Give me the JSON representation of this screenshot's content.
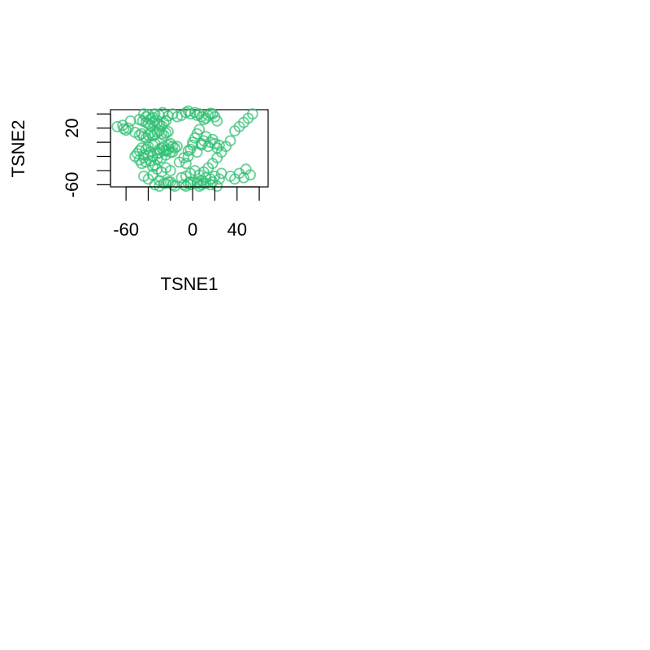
{
  "chart_data": {
    "type": "scatter",
    "title": "",
    "xlabel": "TSNE1",
    "ylabel": "TSNE2",
    "xlim": [
      -74,
      68
    ],
    "ylim": [
      -63,
      46
    ],
    "x_ticks": [
      -60,
      -40,
      -20,
      0,
      20,
      40,
      60
    ],
    "x_tick_labels": [
      "-60",
      "",
      "",
      "0",
      "",
      "40",
      ""
    ],
    "y_ticks": [
      -60,
      -40,
      -20,
      0,
      20,
      40
    ],
    "y_tick_labels": [
      "-60",
      "",
      "",
      "",
      "20",
      ""
    ],
    "grid": false,
    "legend": null,
    "marker": "open-circle",
    "color": "#2fbf71",
    "series": [
      {
        "x": [
          -68,
          -63,
          -62,
          -60,
          -58,
          -56,
          -52,
          -48,
          -46,
          -44,
          -42,
          -40,
          -38,
          -36,
          -34,
          -32,
          -30,
          -28,
          -26,
          -24,
          -22,
          -48,
          -45,
          -42,
          -40,
          -38,
          -36,
          -34,
          -32,
          -30,
          -28,
          -26,
          -24,
          -44,
          -42,
          -40,
          -38,
          -36,
          -34,
          -30,
          -27,
          -22,
          -18,
          -14,
          -10,
          -6,
          -4,
          -2,
          2,
          4,
          6,
          8,
          10,
          12,
          14,
          16,
          18,
          20,
          22,
          -52,
          -50,
          -48,
          -46,
          -44,
          -42,
          -40,
          -38,
          -36,
          -34,
          -32,
          -30,
          -28,
          -26,
          -24,
          -22,
          -20,
          -18,
          -16,
          -14,
          -48,
          -46,
          -44,
          -42,
          -40,
          -38,
          -36,
          -34,
          -32,
          -30,
          -28,
          -26,
          -24,
          -22,
          -20,
          -18,
          -36,
          -32,
          -28,
          -24,
          -20,
          -6,
          -4,
          -2,
          0,
          2,
          4,
          6,
          8,
          10,
          12,
          14,
          16,
          18,
          20,
          22,
          24,
          -12,
          -8,
          -4,
          0,
          4,
          8,
          -10,
          -6,
          -2,
          2,
          6,
          10,
          14,
          18,
          22,
          26,
          30,
          34,
          38,
          42,
          46,
          50,
          54,
          -44,
          -40,
          -36,
          -30,
          -24,
          -20,
          -2,
          4,
          8,
          12,
          18,
          24,
          34,
          38,
          42,
          46,
          48,
          52,
          -8,
          -4,
          4,
          8,
          12,
          16,
          20,
          26,
          -34,
          -30,
          -26,
          -22,
          -18,
          -16,
          -6,
          -2,
          6,
          10,
          16,
          22
        ],
        "y": [
          22,
          24,
          19,
          17,
          20,
          30,
          14,
          10,
          12,
          8,
          6,
          10,
          13,
          9,
          11,
          14,
          16,
          12,
          10,
          13,
          15,
          32,
          30,
          28,
          26,
          24,
          28,
          30,
          27,
          25,
          23,
          28,
          30,
          40,
          36,
          39,
          33,
          35,
          40,
          38,
          42,
          37,
          40,
          36,
          38,
          42,
          44,
          40,
          42,
          38,
          40,
          36,
          32,
          34,
          38,
          41,
          40,
          36,
          30,
          -20,
          -16,
          -12,
          -8,
          -18,
          -10,
          -6,
          -14,
          -4,
          -2,
          -16,
          -10,
          -8,
          -6,
          -12,
          -4,
          -2,
          -14,
          -8,
          -6,
          -25,
          -30,
          -22,
          -28,
          -18,
          -26,
          -20,
          -32,
          -24,
          -15,
          -22,
          -12,
          -18,
          -10,
          -14,
          -6,
          -34,
          -38,
          -42,
          -36,
          -40,
          -30,
          -20,
          -10,
          0,
          6,
          12,
          18,
          -4,
          2,
          8,
          -6,
          0,
          4,
          -2,
          -8,
          -4,
          -28,
          -22,
          -12,
          -4,
          -14,
          -2,
          -50,
          -48,
          -44,
          -40,
          -46,
          -42,
          -36,
          -30,
          -22,
          -14,
          -6,
          2,
          16,
          22,
          28,
          34,
          40,
          -48,
          -52,
          -46,
          -54,
          -58,
          -56,
          -56,
          -58,
          -54,
          -50,
          -56,
          -52,
          -48,
          -52,
          -44,
          -50,
          -38,
          -46,
          -60,
          -58,
          -56,
          -60,
          -58,
          -52,
          -48,
          -44,
          -60,
          -62,
          -58,
          -56,
          -60,
          -62,
          -62,
          -60,
          -62,
          -58,
          -60,
          -62
        ]
      }
    ]
  }
}
